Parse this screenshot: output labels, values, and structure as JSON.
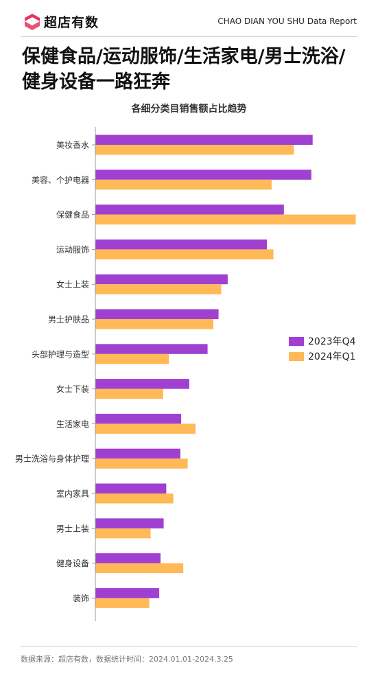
{
  "brand": {
    "name": "超店有数",
    "logo_icon": "brand-logo-icon",
    "report_label": "CHAO DIAN YOU SHU Data Report"
  },
  "headline": "保健食品/运动服饰/生活家电/男士洗浴/健身设备一路狂奔",
  "footnote": "数据来源：超店有数，数据统计时间：2024.01.01-2024.3.25",
  "chart_data": {
    "type": "bar",
    "orientation": "horizontal",
    "title": "各细分类目销售额占比趋势",
    "xlabel": "",
    "ylabel": "",
    "xlim": [
      0,
      10
    ],
    "grid": false,
    "legend_position": "right",
    "categories": [
      "美妆香水",
      "美容、个护电器",
      "保健食品",
      "运动服饰",
      "女士上装",
      "男士护肤品",
      "头部护理与造型",
      "女士下装",
      "生活家电",
      "男士洗浴与身体护理",
      "室内家具",
      "男士上装",
      "健身设备",
      "装饰"
    ],
    "series": [
      {
        "name": "2023年Q4",
        "color": "#a040d0",
        "values": [
          8.3,
          8.25,
          7.2,
          6.55,
          5.05,
          4.7,
          4.28,
          3.58,
          3.27,
          3.24,
          2.7,
          2.6,
          2.48,
          2.43
        ]
      },
      {
        "name": "2024年Q1",
        "color": "#ffb957",
        "values": [
          7.58,
          6.73,
          9.95,
          6.8,
          4.8,
          4.5,
          2.8,
          2.58,
          3.82,
          3.52,
          2.97,
          2.1,
          3.35,
          2.05
        ]
      }
    ]
  }
}
